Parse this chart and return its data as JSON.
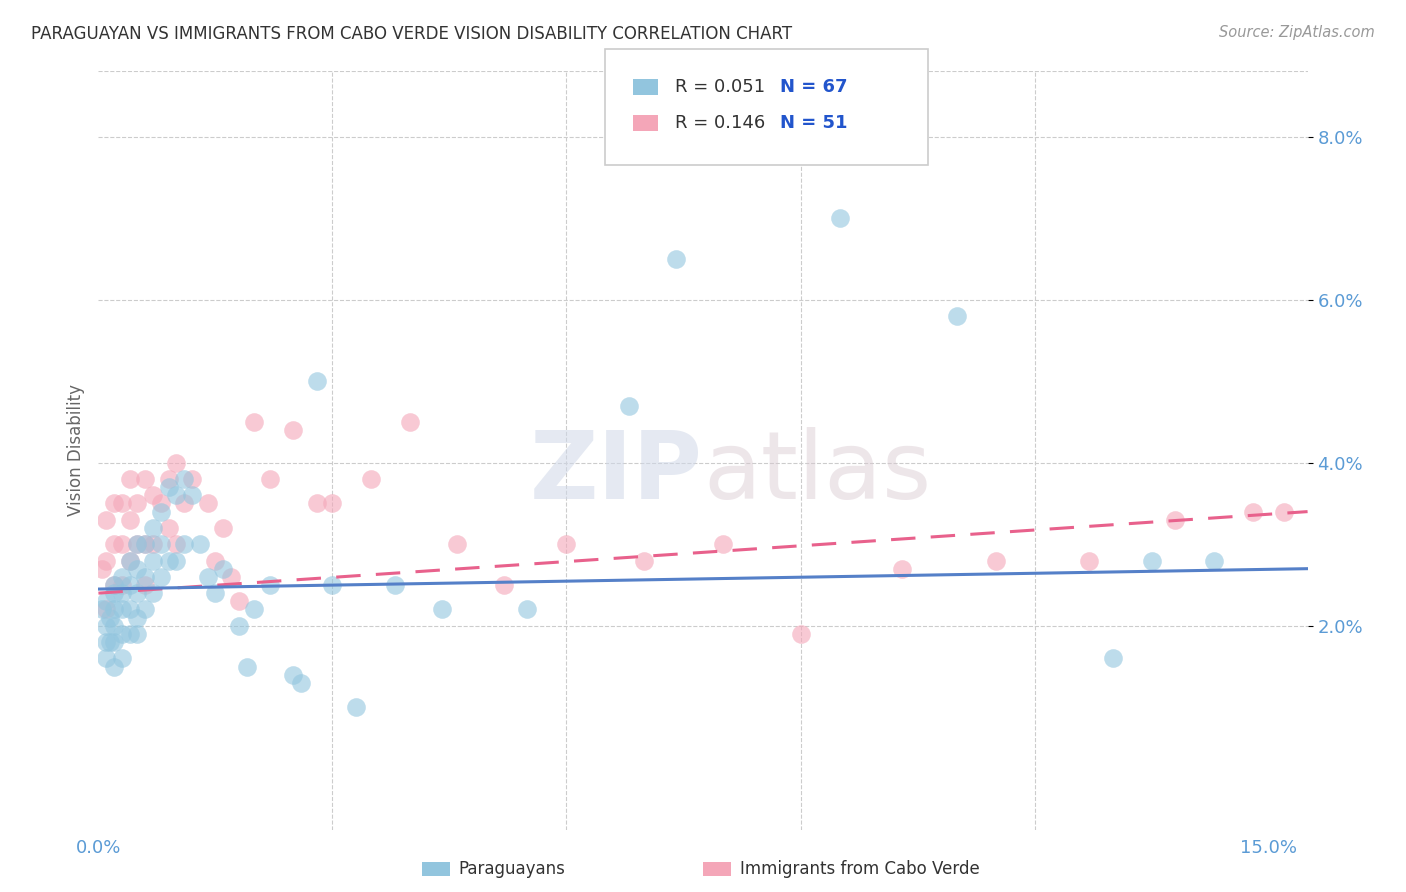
{
  "title": "PARAGUAYAN VS IMMIGRANTS FROM CABO VERDE VISION DISABILITY CORRELATION CHART",
  "source": "Source: ZipAtlas.com",
  "ylabel": "Vision Disability",
  "xlim": [
    0.0,
    0.155
  ],
  "ylim": [
    -0.005,
    0.088
  ],
  "yticks": [
    0.02,
    0.04,
    0.06,
    0.08
  ],
  "ytick_labels": [
    "2.0%",
    "4.0%",
    "6.0%",
    "8.0%"
  ],
  "xtick_labels": [
    "0.0%",
    "",
    "",
    "",
    "",
    "15.0%"
  ],
  "color_blue": "#92c5de",
  "color_pink": "#f4a6b8",
  "background_color": "#ffffff",
  "blue_scatter_x": [
    0.0005,
    0.001,
    0.001,
    0.001,
    0.001,
    0.0015,
    0.0015,
    0.002,
    0.002,
    0.002,
    0.002,
    0.002,
    0.002,
    0.003,
    0.003,
    0.003,
    0.003,
    0.003,
    0.004,
    0.004,
    0.004,
    0.004,
    0.005,
    0.005,
    0.005,
    0.005,
    0.005,
    0.006,
    0.006,
    0.006,
    0.007,
    0.007,
    0.007,
    0.008,
    0.008,
    0.008,
    0.009,
    0.009,
    0.01,
    0.01,
    0.011,
    0.011,
    0.012,
    0.013,
    0.014,
    0.015,
    0.016,
    0.018,
    0.019,
    0.02,
    0.022,
    0.025,
    0.026,
    0.028,
    0.03,
    0.033,
    0.038,
    0.044,
    0.055,
    0.068,
    0.074,
    0.095,
    0.11,
    0.13,
    0.135,
    0.143
  ],
  "blue_scatter_y": [
    0.022,
    0.016,
    0.018,
    0.02,
    0.023,
    0.018,
    0.021,
    0.015,
    0.018,
    0.02,
    0.022,
    0.024,
    0.025,
    0.016,
    0.019,
    0.022,
    0.024,
    0.026,
    0.019,
    0.022,
    0.025,
    0.028,
    0.019,
    0.021,
    0.024,
    0.027,
    0.03,
    0.022,
    0.026,
    0.03,
    0.024,
    0.028,
    0.032,
    0.026,
    0.03,
    0.034,
    0.028,
    0.037,
    0.028,
    0.036,
    0.03,
    0.038,
    0.036,
    0.03,
    0.026,
    0.024,
    0.027,
    0.02,
    0.015,
    0.022,
    0.025,
    0.014,
    0.013,
    0.05,
    0.025,
    0.01,
    0.025,
    0.022,
    0.022,
    0.047,
    0.065,
    0.07,
    0.058,
    0.016,
    0.028,
    0.028
  ],
  "pink_scatter_x": [
    0.0005,
    0.001,
    0.001,
    0.001,
    0.002,
    0.002,
    0.002,
    0.003,
    0.003,
    0.003,
    0.004,
    0.004,
    0.004,
    0.005,
    0.005,
    0.006,
    0.006,
    0.006,
    0.007,
    0.007,
    0.008,
    0.009,
    0.009,
    0.01,
    0.01,
    0.011,
    0.012,
    0.014,
    0.015,
    0.016,
    0.017,
    0.018,
    0.02,
    0.022,
    0.025,
    0.028,
    0.03,
    0.035,
    0.04,
    0.046,
    0.052,
    0.06,
    0.07,
    0.08,
    0.09,
    0.103,
    0.115,
    0.127,
    0.138,
    0.148,
    0.152
  ],
  "pink_scatter_y": [
    0.027,
    0.022,
    0.028,
    0.033,
    0.025,
    0.03,
    0.035,
    0.025,
    0.03,
    0.035,
    0.028,
    0.033,
    0.038,
    0.03,
    0.035,
    0.025,
    0.03,
    0.038,
    0.03,
    0.036,
    0.035,
    0.032,
    0.038,
    0.03,
    0.04,
    0.035,
    0.038,
    0.035,
    0.028,
    0.032,
    0.026,
    0.023,
    0.045,
    0.038,
    0.044,
    0.035,
    0.035,
    0.038,
    0.045,
    0.03,
    0.025,
    0.03,
    0.028,
    0.03,
    0.019,
    0.027,
    0.028,
    0.028,
    0.033,
    0.034,
    0.034
  ],
  "blue_line_x": [
    0.0,
    0.155
  ],
  "blue_line_y": [
    0.0245,
    0.027
  ],
  "pink_line_x": [
    0.0,
    0.155
  ],
  "pink_line_y": [
    0.024,
    0.034
  ]
}
